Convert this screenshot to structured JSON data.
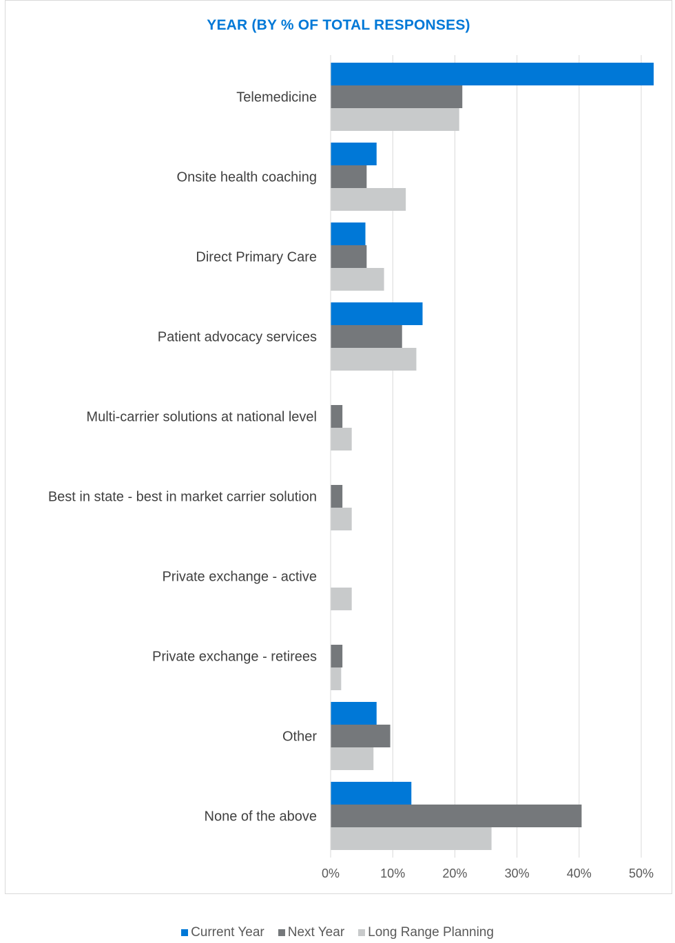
{
  "chart_data": {
    "type": "bar",
    "orientation": "horizontal",
    "title": "YEAR (BY % OF TOTAL RESPONSES)",
    "xlabel": "",
    "ylabel": "",
    "categories": [
      "Telemedicine",
      "Onsite health coaching",
      "Direct Primary Care",
      "Patient advocacy services",
      "Multi-carrier solutions at national level",
      "Best in state - best in market carrier solution",
      "Private exchange - active",
      "Private exchange - retirees",
      "Other",
      "None of the above"
    ],
    "series": [
      {
        "name": "Current Year",
        "color": "#0078d7",
        "values": [
          52,
          7.4,
          5.6,
          14.8,
          0,
          0,
          0,
          0,
          7.4,
          13
        ]
      },
      {
        "name": "Next Year",
        "color": "#75787b",
        "values": [
          21.2,
          5.8,
          5.8,
          11.5,
          1.9,
          1.9,
          0,
          1.9,
          9.6,
          40.4
        ]
      },
      {
        "name": "Long Range Planning",
        "color": "#c8cacb",
        "values": [
          20.7,
          12.1,
          8.6,
          13.8,
          3.4,
          3.4,
          3.4,
          1.7,
          6.9,
          25.9
        ]
      }
    ],
    "xlim": [
      0,
      52
    ],
    "xticks": [
      0,
      10,
      20,
      30,
      40,
      50
    ],
    "xtick_labels": [
      "0%",
      "10%",
      "20%",
      "30%",
      "40%",
      "50%"
    ],
    "grid": "vertical",
    "legend": "bottom"
  }
}
